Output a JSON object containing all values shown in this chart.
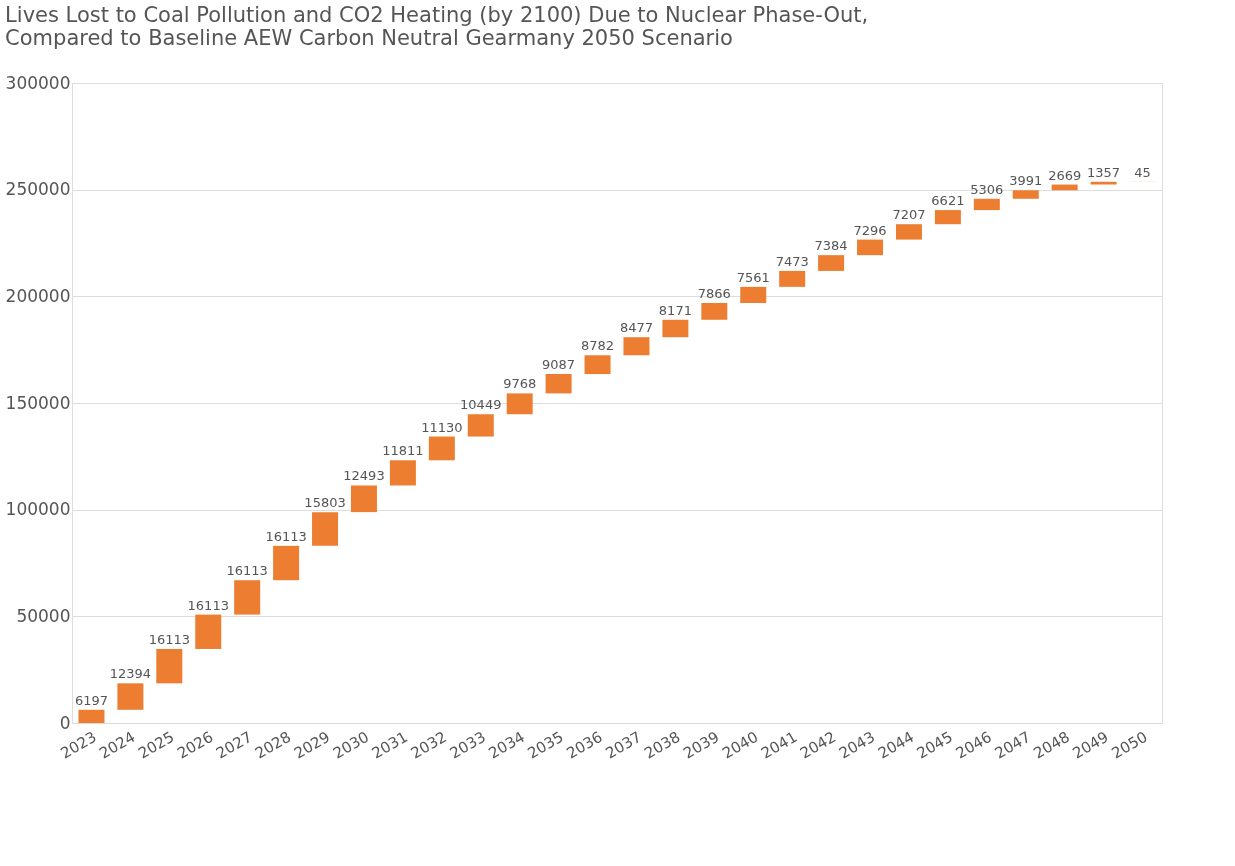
{
  "chart_data": {
    "type": "bar",
    "title": [
      "Lives Lost to Coal Pollution and CO2 Heating (by 2100) Due to Nuclear Phase-Out,",
      "Compared to Baseline AEW Carbon Neutral Gearmany 2050 Scenario"
    ],
    "categories": [
      "2023",
      "2024",
      "2025",
      "2026",
      "2027",
      "2028",
      "2029",
      "2030",
      "2031",
      "2032",
      "2033",
      "2034",
      "2035",
      "2036",
      "2037",
      "2038",
      "2039",
      "2040",
      "2041",
      "2042",
      "2043",
      "2044",
      "2045",
      "2046",
      "2047",
      "2048",
      "2049",
      "2050"
    ],
    "values": [
      6197,
      12394,
      16113,
      16113,
      16113,
      16113,
      15803,
      12493,
      11811,
      11130,
      10449,
      9768,
      9087,
      8782,
      8477,
      8171,
      7866,
      7561,
      7473,
      7384,
      7296,
      7207,
      6621,
      5306,
      3991,
      2669,
      1357,
      45
    ],
    "base": [
      0,
      6197,
      18591,
      34704,
      50817,
      66930,
      83043,
      98846,
      111339,
      123150,
      134280,
      144729,
      154497,
      163584,
      172366,
      180843,
      189014,
      196880,
      204441,
      211914,
      219298,
      226594,
      233801,
      240422,
      245728,
      249719,
      252388,
      253745
    ],
    "color": "#ed7d31",
    "ylim": [
      0,
      300000
    ],
    "yticks": [
      0,
      50000,
      100000,
      150000,
      200000,
      250000,
      300000
    ],
    "grid": "y",
    "data_labels": true
  }
}
